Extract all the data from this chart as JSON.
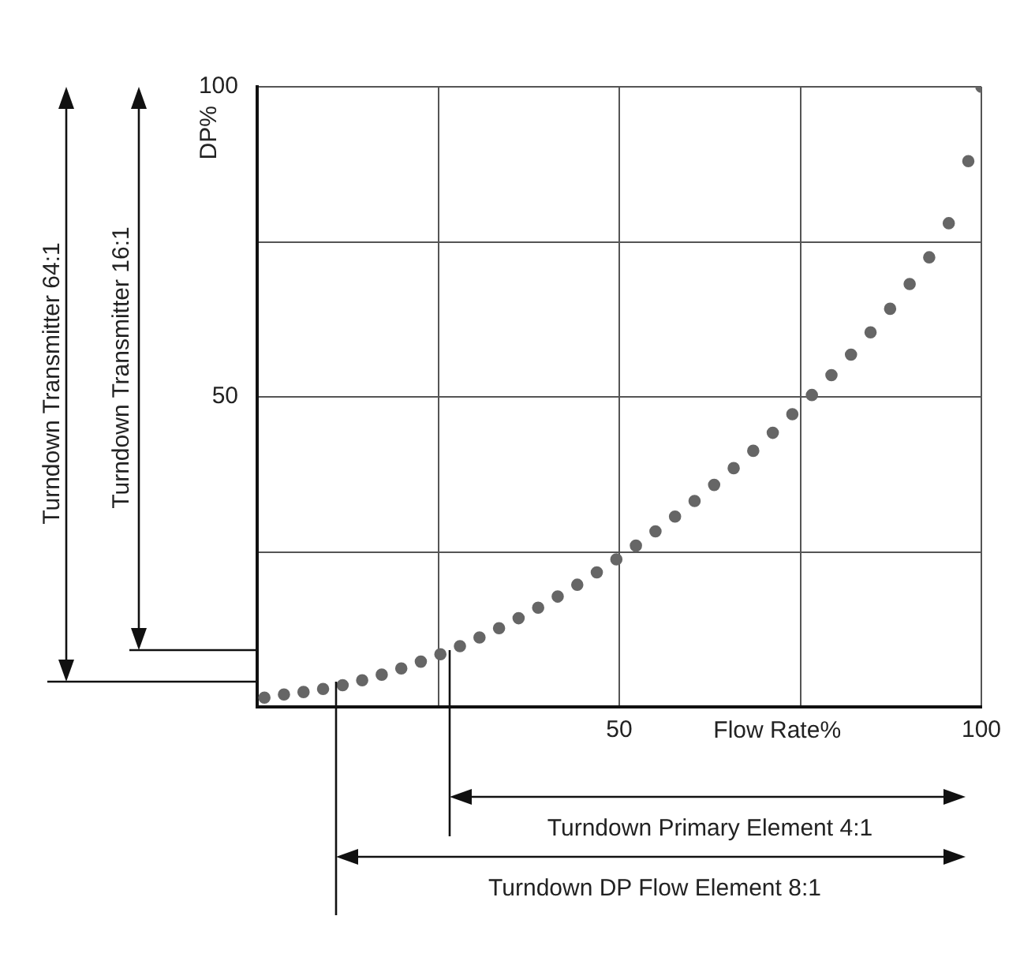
{
  "chart_data": {
    "type": "scatter",
    "xlabel": "Flow Rate%",
    "ylabel": "DP%",
    "x": [
      1,
      3.7,
      6.4,
      9.1,
      11.8,
      14.5,
      17.2,
      19.9,
      22.6,
      25.3,
      28,
      30.7,
      33.4,
      36.1,
      38.8,
      41.5,
      44.2,
      46.9,
      49.6,
      52.3,
      55,
      57.7,
      60.4,
      63.1,
      65.8,
      68.5,
      71.2,
      73.9,
      76.6,
      79.3,
      82,
      84.7,
      87.4,
      90.1,
      92.8,
      95.5,
      98.2,
      100
    ],
    "series": [
      {
        "color": "#666666",
        "values": [
          1.5,
          2,
          2.4,
          2.9,
          3.5,
          4.3,
          5.2,
          6.2,
          7.3,
          8.5,
          9.8,
          11.2,
          12.7,
          14.3,
          16,
          17.8,
          19.7,
          21.7,
          23.8,
          26,
          28.3,
          30.7,
          33.2,
          35.8,
          38.5,
          41.3,
          44.2,
          47.2,
          50.3,
          53.5,
          56.8,
          60.4,
          64.2,
          68.2,
          72.5,
          78,
          88,
          100
        ]
      }
    ],
    "xlim": [
      0,
      100
    ],
    "ylim": [
      0,
      100
    ],
    "xticks": [
      {
        "value": 25,
        "label": null
      },
      50,
      {
        "value": 75,
        "label": null
      },
      100
    ],
    "yticks": [
      {
        "value": 25,
        "label": null
      },
      50,
      {
        "value": 75,
        "label": null
      },
      100
    ],
    "grid": true,
    "marker": "circle",
    "annotations": [
      "Turndown Transmitter 64:1",
      "Turndown Transmitter 16:1",
      "Turndown Primary Element 4:1",
      "Turndown DP Flow Element 8:1"
    ]
  }
}
